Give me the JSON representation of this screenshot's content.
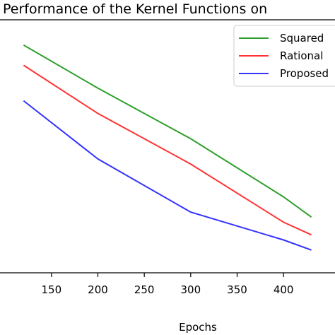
{
  "chart_data": {
    "type": "line",
    "title": "Performance of the Kernel Functions on",
    "xlabel": "Epochs",
    "ylabel": "",
    "x": [
      120,
      200,
      300,
      400,
      430
    ],
    "xticks": [
      150,
      200,
      250,
      300,
      350,
      400
    ],
    "xlim": [
      125,
      425
    ],
    "ylim": [
      0,
      1
    ],
    "grid": false,
    "legend_position": "top-right",
    "series": [
      {
        "name": "Squared",
        "color": "#2ca02c",
        "values": [
          0.9,
          0.73,
          0.53,
          0.3,
          0.22
        ]
      },
      {
        "name": "Rational",
        "color": "#ff3333",
        "values": [
          0.82,
          0.63,
          0.43,
          0.2,
          0.15
        ]
      },
      {
        "name": "Proposed",
        "color": "#3333ff",
        "values": [
          0.68,
          0.45,
          0.24,
          0.13,
          0.09
        ]
      }
    ]
  }
}
